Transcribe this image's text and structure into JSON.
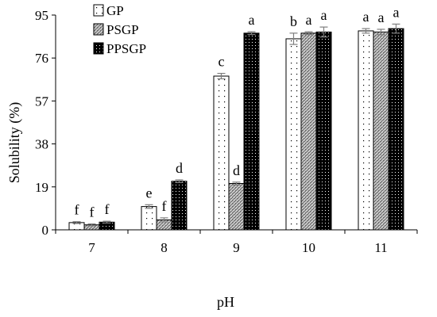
{
  "chart_data": {
    "type": "bar",
    "xlabel": "pH",
    "ylabel": "Solubility (%)",
    "ylim": [
      0,
      95
    ],
    "yticks": [
      "0",
      "19",
      "38",
      "57",
      "76",
      "95"
    ],
    "categories": [
      "7",
      "8",
      "9",
      "10",
      "11"
    ],
    "legend_position": "top-left",
    "grid": false,
    "series": [
      {
        "name": "GP",
        "pattern": "dots-sparse",
        "values": [
          3.2,
          10.3,
          68.0,
          84.5,
          88.0
        ],
        "errors": [
          0.4,
          0.8,
          1.2,
          2.5,
          1.0
        ],
        "labels": [
          "f",
          "e",
          "c",
          "b",
          "a"
        ]
      },
      {
        "name": "PSGP",
        "pattern": "crosshatch-gray",
        "values": [
          2.2,
          4.4,
          20.5,
          87.0,
          87.5
        ],
        "errors": [
          0.4,
          0.9,
          0.6,
          0.6,
          1.2
        ],
        "labels": [
          "f",
          "f",
          "d",
          "a",
          "a"
        ]
      },
      {
        "name": "PPSGP",
        "pattern": "dots-dense-black",
        "values": [
          3.4,
          21.5,
          87.0,
          87.5,
          89.0
        ],
        "errors": [
          0.4,
          0.6,
          0.6,
          2.2,
          2.0
        ],
        "labels": [
          "f",
          "d",
          "a",
          "a",
          "a"
        ]
      }
    ],
    "colors": {
      "axis": "#000000",
      "bar_outline": "#000000",
      "error_bar": "#7f7f7f"
    }
  }
}
